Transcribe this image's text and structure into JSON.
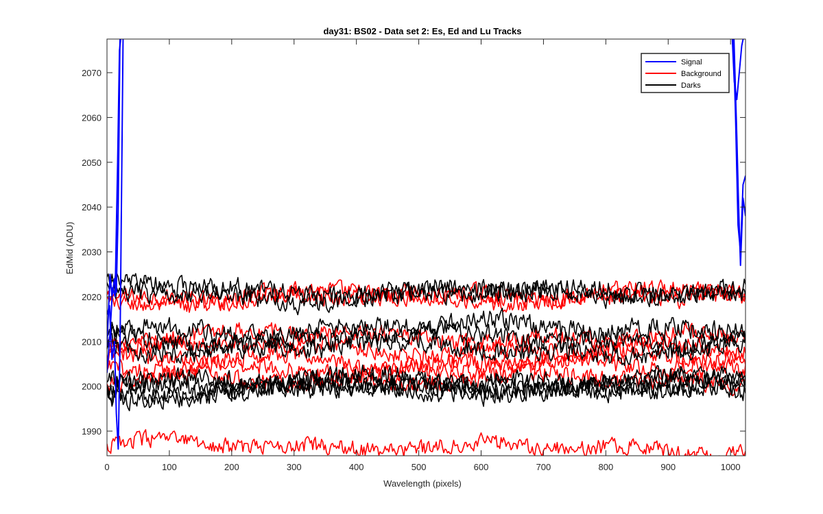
{
  "chart_data": {
    "type": "line",
    "title": "day31: BS02 - Data set 2: Es, Ed and Lu Tracks",
    "xlabel": "Wavelength (pixels)",
    "ylabel": "EdMid (ADU)",
    "xlim": [
      0,
      1024
    ],
    "ylim": [
      1984.5,
      2077.5
    ],
    "xticks": [
      0,
      100,
      200,
      300,
      400,
      500,
      600,
      700,
      800,
      900,
      1000
    ],
    "yticks": [
      1990,
      2000,
      2010,
      2020,
      2030,
      2040,
      2050,
      2060,
      2070
    ],
    "grid": false,
    "legend_location": "top-right",
    "legend": [
      {
        "name": "Signal",
        "color": "#0000ff"
      },
      {
        "name": "Background",
        "color": "#ff0000"
      },
      {
        "name": "Darks",
        "color": "#000000"
      }
    ],
    "series": [
      {
        "group": "Signal",
        "color": "#0000ff",
        "x": [
          0,
          5,
          8,
          12,
          15,
          18,
          21,
          26,
          1000,
          1005,
          1010,
          1013,
          1016,
          1020,
          1024
        ],
        "y": [
          2009,
          2025,
          2020,
          2024,
          2021,
          2040,
          2080,
          2080,
          2080,
          2080,
          2056,
          2040,
          2027,
          2042,
          2038
        ]
      },
      {
        "group": "Signal",
        "color": "#0000ff",
        "x": [
          0,
          4,
          8,
          12,
          15,
          18,
          21,
          26,
          1000,
          1004,
          1008,
          1012,
          1016,
          1020,
          1024
        ],
        "y": [
          2016,
          2018,
          2006,
          2010,
          1994,
          1986,
          2010,
          2080,
          2080,
          2080,
          2060,
          2036,
          2030,
          2045,
          2047
        ]
      },
      {
        "group": "Signal",
        "color": "#0000ff",
        "x": [
          0,
          5,
          9,
          13,
          17,
          20,
          24,
          1002,
          1006,
          1010,
          1014,
          1018,
          1024
        ],
        "y": [
          2003,
          2012,
          2022,
          2020,
          2050,
          2075,
          2080,
          2080,
          2068,
          2064,
          2070,
          2076,
          2080
        ]
      }
    ],
    "traces": [
      {
        "group": "Background",
        "color": "#ff0000",
        "base": 2020.5,
        "amp": 1.8
      },
      {
        "group": "Background",
        "color": "#ff0000",
        "base": 2019.5,
        "amp": 1.8
      },
      {
        "group": "Background",
        "color": "#ff0000",
        "base": 2011.0,
        "amp": 1.8
      },
      {
        "group": "Background",
        "color": "#ff0000",
        "base": 2008.5,
        "amp": 1.8
      },
      {
        "group": "Background",
        "color": "#ff0000",
        "base": 2006.0,
        "amp": 1.8
      },
      {
        "group": "Background",
        "color": "#ff0000",
        "base": 2004.0,
        "amp": 1.8
      },
      {
        "group": "Background",
        "color": "#ff0000",
        "base": 2001.5,
        "amp": 1.8
      },
      {
        "group": "Background",
        "color": "#ff0000",
        "base": 1986.5,
        "amp": 1.6
      },
      {
        "group": "Darks",
        "color": "#000000",
        "base": 2021.5,
        "amp": 2.0
      },
      {
        "group": "Darks",
        "color": "#000000",
        "base": 2020.5,
        "amp": 2.0
      },
      {
        "group": "Darks",
        "color": "#000000",
        "base": 2013.0,
        "amp": 2.0
      },
      {
        "group": "Darks",
        "color": "#000000",
        "base": 2010.5,
        "amp": 2.0
      },
      {
        "group": "Darks",
        "color": "#000000",
        "base": 2008.5,
        "amp": 2.0
      },
      {
        "group": "Darks",
        "color": "#000000",
        "base": 2001.5,
        "amp": 2.0
      },
      {
        "group": "Darks",
        "color": "#000000",
        "base": 2000.5,
        "amp": 2.0
      },
      {
        "group": "Darks",
        "color": "#000000",
        "base": 1999.5,
        "amp": 2.0
      },
      {
        "group": "Darks",
        "color": "#000000",
        "base": 1999.0,
        "amp": 2.0
      }
    ]
  }
}
